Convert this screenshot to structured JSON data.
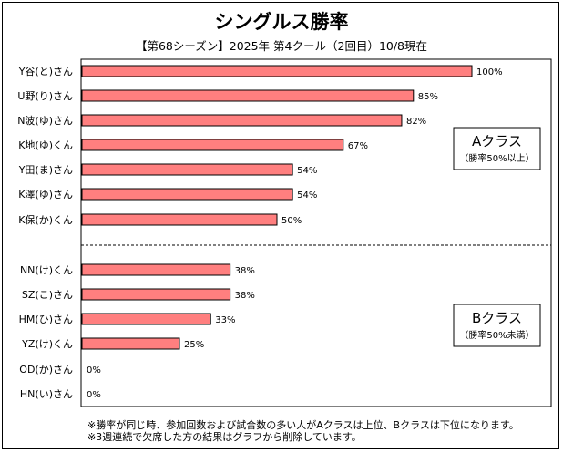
{
  "title": "シングルス勝率",
  "subtitle": "【第68シーズン】2025年 第4クール（2回目）10/8現在",
  "colors": {
    "bar": "#ff7f7f",
    "bar_stroke": "#000000",
    "divider": "#000000"
  },
  "chart_data": {
    "type": "bar",
    "orientation": "horizontal",
    "value_suffix": "%",
    "xlim": [
      0,
      100
    ],
    "grid": false,
    "categories": [
      "Y谷(と)さん",
      "U野(り)さん",
      "N波(ゆ)さん",
      "K地(ゆ)くん",
      "Y田(ま)さん",
      "K澤(ゆ)さん",
      "K保(か)くん",
      "NN(け)くん",
      "SZ(こ)さん",
      "HM(ひ)さん",
      "YZ(け)くん",
      "OD(か)さん",
      "HN(い)さん"
    ],
    "values": [
      100,
      85,
      82,
      67,
      54,
      54,
      50,
      38,
      38,
      33,
      25,
      0,
      0
    ],
    "groups": [
      {
        "label": "Aクラス",
        "note": "（勝率50%以上）",
        "count": 7
      },
      {
        "label": "Bクラス",
        "note": "（勝率50%未満）",
        "count": 6
      }
    ]
  },
  "footnotes": [
    "※勝率が同じ時、参加回数および試合数の多い人がAクラスは上位、Bクラスは下位になります。",
    "※3週連続で欠席した方の結果はグラフから削除しています。"
  ]
}
